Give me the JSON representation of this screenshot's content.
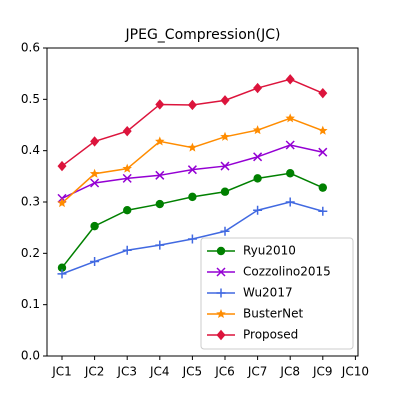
{
  "chart_data": {
    "type": "line",
    "title": "JPEG_Compression(JC)",
    "categories": [
      "JC1",
      "JC2",
      "JC3",
      "JC4",
      "JC5",
      "JC6",
      "JC7",
      "JC8",
      "JC9",
      "JC10"
    ],
    "series": [
      {
        "name": "Ryu2010",
        "color": "#008000",
        "marker": "circle",
        "values": [
          0.172,
          0.253,
          0.284,
          0.296,
          0.31,
          0.32,
          0.346,
          0.356,
          0.328,
          null
        ]
      },
      {
        "name": "Cozzolino2015",
        "color": "#9400d3",
        "marker": "x",
        "values": [
          0.307,
          0.337,
          0.346,
          0.352,
          0.363,
          0.37,
          0.388,
          0.411,
          0.397,
          null
        ]
      },
      {
        "name": "Wu2017",
        "color": "#4169e1",
        "marker": "plus",
        "values": [
          0.16,
          0.184,
          0.206,
          0.216,
          0.228,
          0.243,
          0.284,
          0.3,
          0.282,
          null
        ]
      },
      {
        "name": "BusterNet",
        "color": "#ff8c00",
        "marker": "star",
        "values": [
          0.298,
          0.355,
          0.365,
          0.418,
          0.406,
          0.427,
          0.44,
          0.463,
          0.439,
          null
        ]
      },
      {
        "name": "Proposed",
        "color": "#dc143c",
        "marker": "diamond",
        "values": [
          0.37,
          0.418,
          0.438,
          0.49,
          0.489,
          0.498,
          0.522,
          0.539,
          0.512,
          null
        ]
      }
    ],
    "ylim": [
      0,
      0.6
    ],
    "yticks": [
      {
        "value": 0,
        "label": "0.0"
      },
      0.1,
      0.2,
      0.3,
      0.4,
      0.5,
      0.6
    ],
    "legend": "lower right"
  }
}
